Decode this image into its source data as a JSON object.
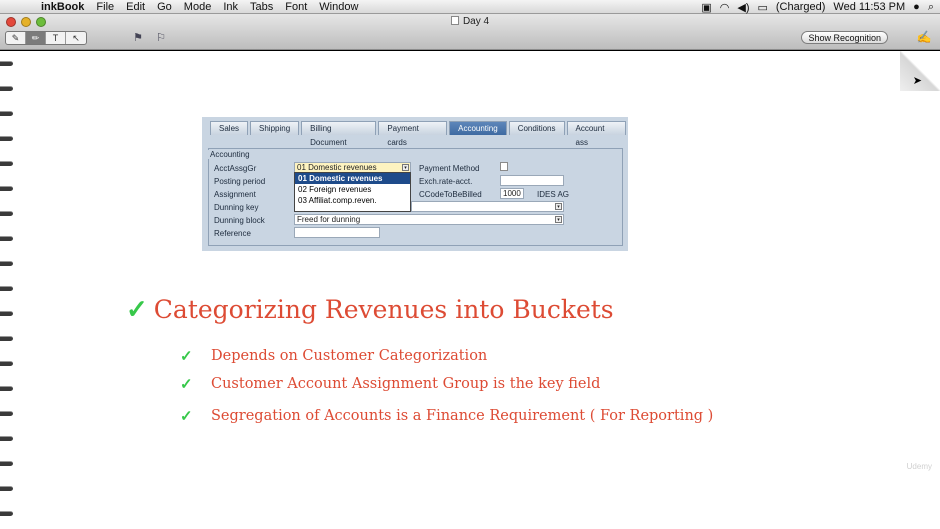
{
  "menubar": {
    "app": "inkBook",
    "items": [
      "File",
      "Edit",
      "Go",
      "Mode",
      "Ink",
      "Tabs",
      "Font",
      "Window"
    ],
    "battery": "(Charged)",
    "clock": "Wed 11:53 PM"
  },
  "window": {
    "title": "Day 4",
    "tools": [
      "✎",
      "✏",
      "T",
      "↖"
    ],
    "show_recognition": "Show Recognition"
  },
  "sap": {
    "tabs": [
      "Sales",
      "Shipping",
      "Billing Document",
      "Payment cards",
      "Accounting",
      "Conditions",
      "Account ass"
    ],
    "active_tab": "Accounting",
    "group_title": "Accounting",
    "labels": {
      "acct_assg_gr": "AcctAssgGr",
      "posting_period": "Posting period",
      "assignment": "Assignment",
      "dunning_key": "Dunning key",
      "dunning_block": "Dunning block",
      "reference": "Reference",
      "payment_method": "Payment Method",
      "exch_rate": "Exch.rate-acct.",
      "ccode": "CCodeToBeBilled"
    },
    "acct_assg_value": "01  Domestic revenues",
    "dunning_block_value": "Freed for dunning",
    "ccode_value": "1000",
    "ccode_name": "IDES AG",
    "dropdown_options": [
      "01   Domestic revenues",
      "02   Foreign revenues",
      "03   Affiliat.comp.reven."
    ]
  },
  "slide": {
    "headline": "Categorizing Revenues into Buckets",
    "bullets": [
      "Depends on Customer Categorization",
      "Customer Account Assignment Group is the key field",
      "Segregation of Accounts is a Finance Requirement ( For Reporting )"
    ],
    "check_color": "#37c84a",
    "text_color": "#dd4b34"
  },
  "watermark": "Udemy"
}
